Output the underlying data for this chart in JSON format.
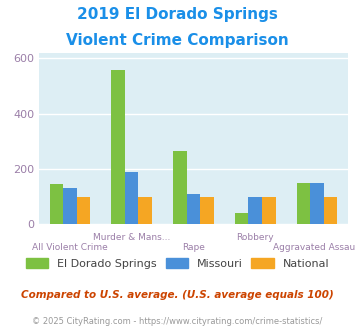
{
  "title_line1": "2019 El Dorado Springs",
  "title_line2": "Violent Crime Comparison",
  "categories": [
    "All Violent Crime",
    "Murder & Mans...",
    "Rape",
    "Robbery",
    "Aggravated Assault"
  ],
  "upper_labels": [
    "",
    "Murder & Mans...",
    "",
    "Robbery",
    ""
  ],
  "lower_labels": [
    "All Violent Crime",
    "",
    "Rape",
    "",
    "Aggravated Assault"
  ],
  "series": {
    "El Dorado Springs": [
      147,
      557,
      265,
      40,
      150
    ],
    "Missouri": [
      133,
      188,
      110,
      100,
      148
    ],
    "National": [
      100,
      100,
      100,
      100,
      100
    ]
  },
  "colors": {
    "El Dorado Springs": "#7dc142",
    "Missouri": "#4a90d9",
    "National": "#f5a623"
  },
  "ylim": [
    0,
    620
  ],
  "yticks": [
    0,
    200,
    400,
    600
  ],
  "plot_bg": "#ddeef4",
  "title_color": "#1a8fe8",
  "tick_color": "#9b7fa8",
  "footnote1": "Compared to U.S. average. (U.S. average equals 100)",
  "footnote2": "© 2025 CityRating.com - https://www.cityrating.com/crime-statistics/",
  "footnote1_color": "#cc4400",
  "footnote2_color": "#999999",
  "url_color": "#2277cc",
  "title_fontsize": 11,
  "bar_width": 0.22,
  "grid_color": "#ffffff",
  "ytick_label_color": "#9b7fa8"
}
